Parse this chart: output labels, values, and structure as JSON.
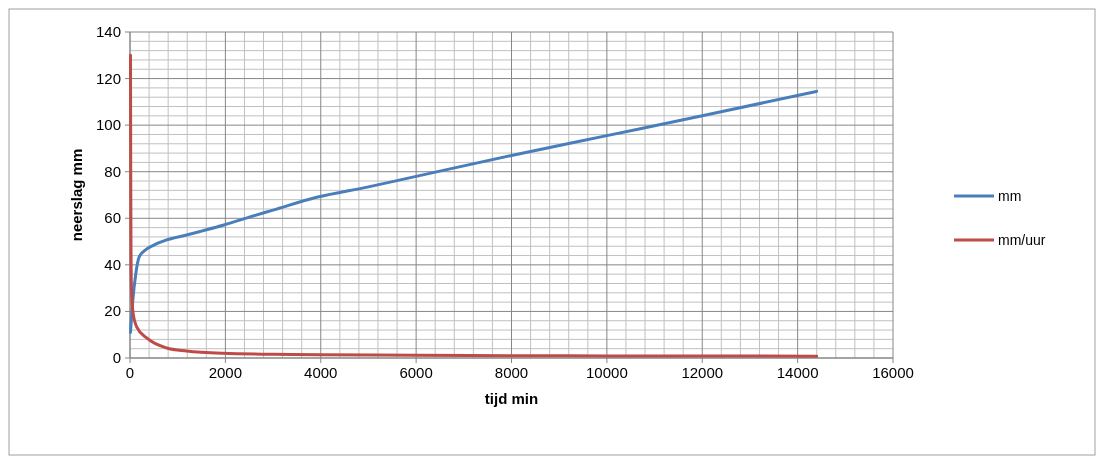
{
  "chart_data": {
    "type": "line",
    "xlabel": "tijd min",
    "ylabel": "neerslag mm",
    "xlim": [
      0,
      16000
    ],
    "ylim": [
      0,
      140
    ],
    "xticks": [
      0,
      2000,
      4000,
      6000,
      8000,
      10000,
      12000,
      14000,
      16000
    ],
    "yticks": [
      0,
      20,
      40,
      60,
      80,
      100,
      120,
      140
    ],
    "grid": true,
    "legend": "right",
    "marker": "none",
    "line_style": "solid",
    "series": [
      {
        "name": "mm",
        "color": "#4a7ebb",
        "x": [
          10,
          60,
          120,
          195,
          300,
          500,
          768,
          1186,
          1500,
          1950,
          2500,
          3000,
          3914,
          5000,
          6000,
          8000,
          10000,
          12000,
          14400
        ],
        "values": [
          11,
          25,
          36,
          43.5,
          46,
          48.5,
          50.7,
          52.8,
          54.5,
          57,
          60.5,
          63.5,
          69,
          73.5,
          78,
          87,
          95.5,
          104,
          114.5
        ]
      },
      {
        "name": "mm/uur",
        "color": "#be4b48",
        "x": [
          10,
          15,
          20,
          30,
          60,
          140,
          350,
          768,
          1186,
          1950,
          3000,
          4000,
          6000,
          8000,
          10000,
          12000,
          14400
        ],
        "values": [
          130,
          80,
          50,
          30,
          20,
          13.4,
          8.6,
          4.3,
          3,
          2,
          1.6,
          1.4,
          1.2,
          1.0,
          0.9,
          0.9,
          0.8
        ]
      }
    ]
  }
}
